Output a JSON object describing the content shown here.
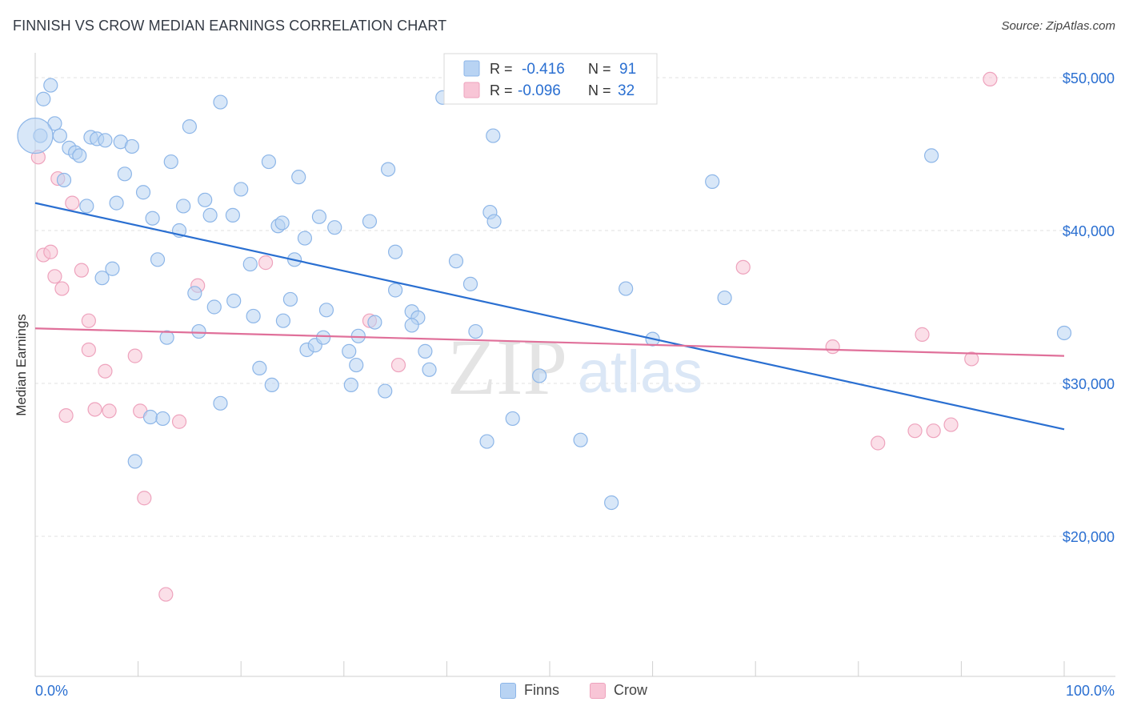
{
  "title": "FINNISH VS CROW MEDIAN EARNINGS CORRELATION CHART",
  "source": "Source: ZipAtlas.com",
  "watermark": {
    "zip": "ZIP",
    "atlas": "atlas"
  },
  "legend": {
    "rows": [
      {
        "r_label": "R =",
        "r_value": "-0.416",
        "n_label": "N =",
        "n_value": "91"
      },
      {
        "r_label": "R =",
        "r_value": "-0.096",
        "n_label": "N =",
        "n_value": "32"
      }
    ]
  },
  "chart_data": {
    "type": "scatter",
    "xlabel": "",
    "ylabel": "Median Earnings",
    "xlim": [
      0,
      100
    ],
    "ylim": [
      10000,
      51500
    ],
    "x_tick_labels": {
      "left": "0.0%",
      "right": "100.0%"
    },
    "y_ticks": [
      {
        "value": 20000,
        "label": "$20,000"
      },
      {
        "value": 30000,
        "label": "$30,000"
      },
      {
        "value": 40000,
        "label": "$40,000"
      },
      {
        "value": 50000,
        "label": "$50,000"
      }
    ],
    "grid": true,
    "legend_position": "top-center",
    "colors": {
      "finns_fill": "#b8d3f3",
      "finns_stroke": "#8db6e8",
      "finns_line": "#2a6fd1",
      "crow_fill": "#f8c5d6",
      "crow_stroke": "#eea3bd",
      "crow_line": "#e0709a",
      "value_text": "#2a6fd1"
    },
    "series": [
      {
        "name": "Finns",
        "trend": {
          "x": [
            0,
            100
          ],
          "y": [
            41800,
            27000
          ]
        },
        "points": [
          [
            0.5,
            46200
          ],
          [
            1.5,
            49500
          ],
          [
            0.8,
            48600
          ],
          [
            1.9,
            47000
          ],
          [
            2.4,
            46200
          ],
          [
            3.3,
            45400
          ],
          [
            3.9,
            45100
          ],
          [
            4.3,
            44900
          ],
          [
            2.8,
            43300
          ],
          [
            5.0,
            41600
          ],
          [
            5.4,
            46100
          ],
          [
            6.0,
            46000
          ],
          [
            6.8,
            45900
          ],
          [
            8.3,
            45800
          ],
          [
            9.4,
            45500
          ],
          [
            8.7,
            43700
          ],
          [
            7.9,
            41800
          ],
          [
            10.5,
            42500
          ],
          [
            11.4,
            40800
          ],
          [
            13.2,
            44500
          ],
          [
            14.4,
            41600
          ],
          [
            14.0,
            40000
          ],
          [
            15.0,
            46800
          ],
          [
            16.5,
            42000
          ],
          [
            17.0,
            41000
          ],
          [
            18.0,
            48400
          ],
          [
            19.2,
            41000
          ],
          [
            20.0,
            42700
          ],
          [
            22.7,
            44500
          ],
          [
            23.6,
            40300
          ],
          [
            24.0,
            40500
          ],
          [
            25.6,
            43500
          ],
          [
            26.2,
            39500
          ],
          [
            27.6,
            40900
          ],
          [
            29.1,
            40200
          ],
          [
            32.5,
            40600
          ],
          [
            34.3,
            44000
          ],
          [
            35.0,
            38600
          ],
          [
            39.6,
            48700
          ],
          [
            40.9,
            38000
          ],
          [
            11.9,
            38100
          ],
          [
            6.5,
            36900
          ],
          [
            7.5,
            37500
          ],
          [
            15.5,
            35900
          ],
          [
            17.4,
            35000
          ],
          [
            19.3,
            35400
          ],
          [
            20.9,
            37800
          ],
          [
            21.2,
            34400
          ],
          [
            25.2,
            38100
          ],
          [
            24.8,
            35500
          ],
          [
            24.1,
            34100
          ],
          [
            28.3,
            34800
          ],
          [
            35.0,
            36100
          ],
          [
            36.6,
            34700
          ],
          [
            37.2,
            34300
          ],
          [
            36.6,
            33800
          ],
          [
            42.3,
            36500
          ],
          [
            33.0,
            34000
          ],
          [
            15.9,
            33400
          ],
          [
            12.8,
            33000
          ],
          [
            26.4,
            32200
          ],
          [
            27.2,
            32500
          ],
          [
            28.0,
            33000
          ],
          [
            30.5,
            32100
          ],
          [
            31.4,
            33100
          ],
          [
            37.9,
            32100
          ],
          [
            42.8,
            33400
          ],
          [
            21.8,
            31000
          ],
          [
            31.2,
            31200
          ],
          [
            23.0,
            29900
          ],
          [
            30.7,
            29900
          ],
          [
            34.0,
            29500
          ],
          [
            38.3,
            30900
          ],
          [
            18.0,
            28700
          ],
          [
            11.2,
            27800
          ],
          [
            12.4,
            27700
          ],
          [
            9.7,
            24900
          ],
          [
            43.9,
            26200
          ],
          [
            46.4,
            27700
          ],
          [
            49.0,
            30500
          ],
          [
            53.0,
            26300
          ],
          [
            44.5,
            46200
          ],
          [
            65.8,
            43200
          ],
          [
            87.1,
            44900
          ],
          [
            44.2,
            41200
          ],
          [
            44.6,
            40600
          ],
          [
            57.4,
            36200
          ],
          [
            67.0,
            35600
          ],
          [
            60.0,
            32900
          ],
          [
            56.0,
            22200
          ],
          [
            100.0,
            33300
          ]
        ]
      },
      {
        "name": "Crow",
        "trend": {
          "x": [
            0,
            100
          ],
          "y": [
            33600,
            31800
          ]
        },
        "points": [
          [
            0.3,
            44800
          ],
          [
            2.2,
            43400
          ],
          [
            3.6,
            41800
          ],
          [
            0.8,
            38400
          ],
          [
            1.5,
            38600
          ],
          [
            1.9,
            37000
          ],
          [
            2.6,
            36200
          ],
          [
            4.5,
            37400
          ],
          [
            15.8,
            36400
          ],
          [
            22.4,
            37900
          ],
          [
            5.2,
            34100
          ],
          [
            5.2,
            32200
          ],
          [
            6.8,
            30800
          ],
          [
            9.7,
            31800
          ],
          [
            3.0,
            27900
          ],
          [
            5.8,
            28300
          ],
          [
            7.2,
            28200
          ],
          [
            10.2,
            28200
          ],
          [
            14.0,
            27500
          ],
          [
            10.6,
            22500
          ],
          [
            12.7,
            16200
          ],
          [
            32.5,
            34100
          ],
          [
            35.3,
            31200
          ],
          [
            68.8,
            37600
          ],
          [
            77.5,
            32400
          ],
          [
            81.9,
            26100
          ],
          [
            86.2,
            33200
          ],
          [
            85.5,
            26900
          ],
          [
            87.3,
            26900
          ],
          [
            89.0,
            27300
          ],
          [
            91.0,
            31600
          ],
          [
            92.8,
            49900
          ]
        ]
      }
    ]
  }
}
